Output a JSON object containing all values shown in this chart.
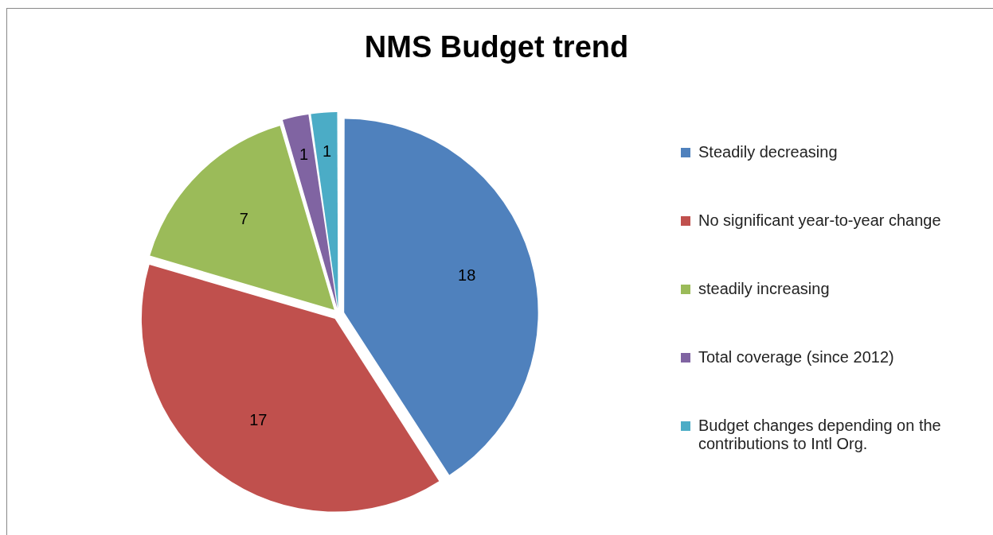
{
  "chart_data": {
    "type": "pie",
    "title": "NMS Budget trend",
    "categories": [
      "Steadily decreasing",
      "No significant year-to-year change",
      "steadily increasing",
      "Total coverage (since 2012)",
      "Budget changes depending on the contributions to Intl Org."
    ],
    "values": [
      18,
      17,
      7,
      1,
      1
    ],
    "colors": [
      "#4f81bd",
      "#c0504d",
      "#9bbb59",
      "#8064a2",
      "#4bacc6"
    ],
    "data_labels": true,
    "legend": "right"
  }
}
